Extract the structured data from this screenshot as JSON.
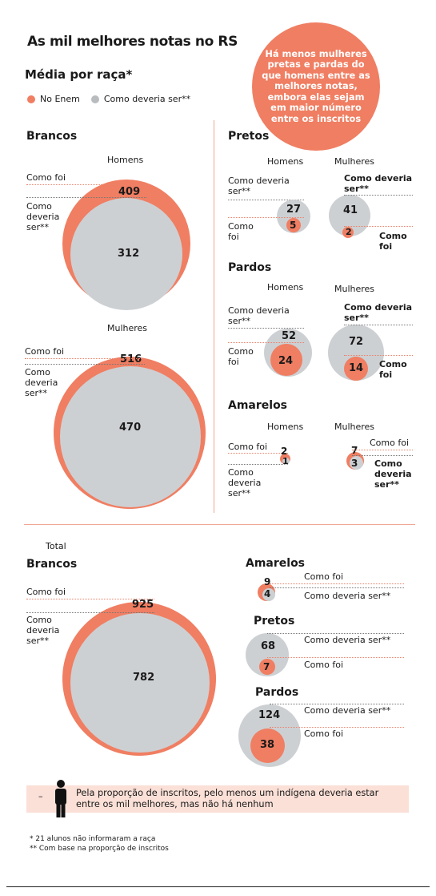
{
  "title": "As mil melhores notas no RS",
  "subtitle": "Média por raça*",
  "legend": {
    "enem": "No Enem",
    "should": "Como deveria ser**",
    "enem_color": "#f07e62",
    "should_color": "#cdd0d3"
  },
  "callout": "Há menos mulheres pretas e pardas do que homens entre as melhores notas, embora elas sejam em maior número entre os inscritos",
  "labels": {
    "como_foi": "Como foi",
    "como_deveria_ser": "Como deveria ser**",
    "como_deveria_ser_l1": "Como deveria",
    "como_deveria_ser_l2": "ser**",
    "como_deveria_ser_3a": "Como",
    "como_deveria_ser_3b": "deveria",
    "como_foi_a": "Como",
    "como_foi_b": "foi",
    "homens": "Homens",
    "mulheres": "Mulheres",
    "total": "Total"
  },
  "sections": {
    "brancos": "Brancos",
    "pretos": "Pretos",
    "pardos": "Pardos",
    "amarelos": "Amarelos"
  },
  "values": {
    "brancos_homens": {
      "foi": 409,
      "deveria": 312
    },
    "brancos_mulheres": {
      "foi": 516,
      "deveria": 470
    },
    "pretos_homens": {
      "foi": 5,
      "deveria": 27
    },
    "pretos_mulheres": {
      "foi": 2,
      "deveria": 41
    },
    "pardos_homens": {
      "foi": 24,
      "deveria": 52
    },
    "pardos_mulheres": {
      "foi": 14,
      "deveria": 72
    },
    "amarelos_homens": {
      "foi": 2,
      "deveria": 1
    },
    "amarelos_mulheres": {
      "foi": 7,
      "deveria": 3
    },
    "total_brancos": {
      "foi": 925,
      "deveria": 782
    },
    "total_amarelos": {
      "foi": 9,
      "deveria": 4
    },
    "total_pretos": {
      "foi": 7,
      "deveria": 68
    },
    "total_pardos": {
      "foi": 38,
      "deveria": 124
    }
  },
  "note": {
    "dash": "–",
    "icon": "person-icon",
    "text": "Pela proporção de inscritos, pelo menos um indígena deveria estar entre os mil melhores, mas não há nenhum"
  },
  "footnotes": {
    "one": "* 21 alunos não informaram a raça",
    "two": "** Com base na proporção de inscritos"
  }
}
